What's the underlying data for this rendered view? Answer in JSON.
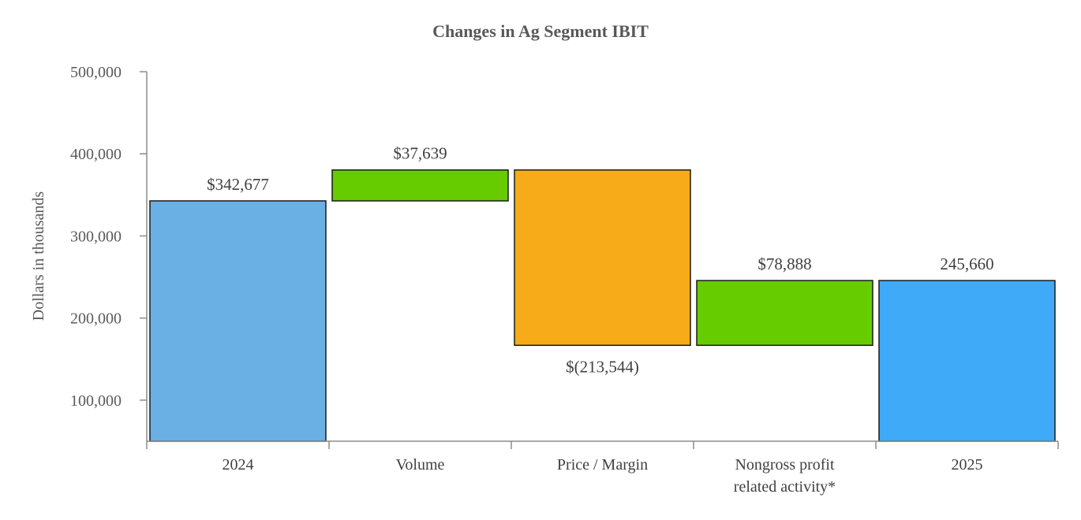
{
  "chart_data": {
    "type": "bar",
    "subtype": "waterfall",
    "title": "Changes in Ag Segment IBIT",
    "ylabel": "Dollars in thousands",
    "xlabel": "",
    "ylim": [
      50000,
      500000
    ],
    "yticks": [
      100000,
      200000,
      300000,
      400000,
      500000
    ],
    "ytick_labels": [
      "100,000",
      "200,000",
      "300,000",
      "400,000",
      "500,000"
    ],
    "grid": false,
    "legend": "none",
    "categories": [
      {
        "lines": [
          "2024"
        ]
      },
      {
        "lines": [
          "Volume"
        ]
      },
      {
        "lines": [
          "Price / Margin"
        ]
      },
      {
        "lines": [
          "Nongross profit",
          "related activity*"
        ]
      },
      {
        "lines": [
          "2025"
        ]
      }
    ],
    "steps": [
      {
        "kind": "total",
        "value": 342677,
        "label": "$342,677",
        "label_position": "above",
        "color": "#6ab0e4"
      },
      {
        "kind": "delta",
        "value": 37639,
        "label": "$37,639",
        "label_position": "above",
        "color": "#66cc00"
      },
      {
        "kind": "delta",
        "value": -213544,
        "label": "$(213,544)",
        "label_position": "below",
        "color": "#f7ab19"
      },
      {
        "kind": "delta",
        "value": 78888,
        "label": "$78,888",
        "label_position": "above",
        "color": "#66cc00"
      },
      {
        "kind": "total",
        "value": 245660,
        "label": "245,660",
        "label_position": "above",
        "color": "#3eaaf8"
      }
    ]
  }
}
